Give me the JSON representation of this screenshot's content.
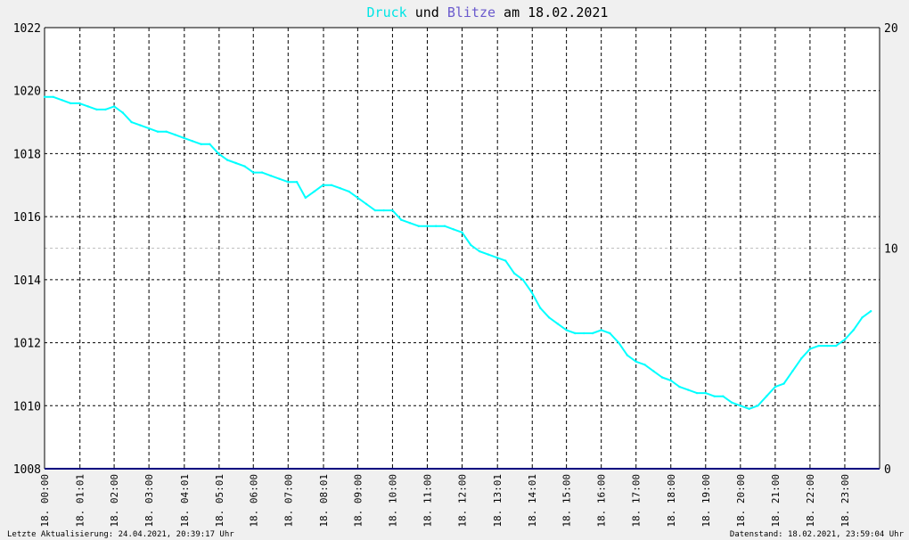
{
  "title": {
    "parts": [
      {
        "text": "Druck",
        "color": "#00e5e5"
      },
      {
        "text": " und ",
        "color": "#000000"
      },
      {
        "text": "Blitze",
        "color": "#6a5acd"
      },
      {
        "text": " am 18.02.2021",
        "color": "#000000"
      }
    ]
  },
  "footer": {
    "left": "Letzte Aktualisierung: 24.04.2021, 20:39:17 Uhr",
    "right": "Datenstand: 18.02.2021, 23:59:04 Uhr"
  },
  "colors": {
    "background": "#f0f0f0",
    "plot_background": "#ffffff",
    "pressure": "#00ffff",
    "lightning": "#000080",
    "grid": "#000000"
  },
  "chart_data": {
    "type": "line",
    "title": "Druck und Blitze am 18.02.2021",
    "grid": true,
    "x_tick_labels": [
      "18. 00:00",
      "18. 01:01",
      "18. 02:00",
      "18. 03:00",
      "18. 04:01",
      "18. 05:01",
      "18. 06:00",
      "18. 07:00",
      "18. 08:01",
      "18. 09:00",
      "18. 10:00",
      "18. 11:00",
      "18. 12:00",
      "18. 13:01",
      "18. 14:01",
      "18. 15:00",
      "18. 16:00",
      "18. 17:00",
      "18. 18:00",
      "18. 19:00",
      "18. 20:00",
      "18. 21:00",
      "18. 22:00",
      "18. 23:00"
    ],
    "x_tick_hours": [
      0,
      1.017,
      2,
      3,
      4.017,
      5.017,
      6,
      7,
      8.017,
      9,
      10,
      11,
      12,
      13.017,
      14.017,
      15,
      16,
      17,
      18,
      19,
      20,
      21,
      22,
      23
    ],
    "xlim": [
      0,
      24
    ],
    "left_axis": {
      "ylim": [
        1008,
        1022
      ],
      "ticks": [
        1008,
        1010,
        1012,
        1014,
        1016,
        1018,
        1020,
        1022
      ]
    },
    "right_axis": {
      "ylim": [
        0,
        20
      ],
      "ticks": [
        0,
        10,
        20
      ]
    },
    "series": [
      {
        "name": "Druck",
        "axis": "left",
        "color": "#00ffff",
        "x": [
          0,
          0.25,
          0.5,
          0.75,
          1.0,
          1.25,
          1.5,
          1.75,
          2.0,
          2.25,
          2.5,
          2.75,
          3.0,
          3.25,
          3.5,
          3.75,
          4.0,
          4.25,
          4.5,
          4.75,
          5.0,
          5.25,
          5.5,
          5.75,
          6.0,
          6.25,
          6.5,
          6.75,
          7.0,
          7.25,
          7.5,
          7.75,
          8.0,
          8.25,
          8.5,
          8.75,
          9.0,
          9.25,
          9.5,
          9.75,
          10.0,
          10.25,
          10.5,
          10.75,
          11.0,
          11.25,
          11.5,
          11.75,
          12.0,
          12.25,
          12.5,
          12.75,
          13.0,
          13.25,
          13.5,
          13.75,
          14.0,
          14.25,
          14.5,
          14.75,
          15.0,
          15.25,
          15.5,
          15.75,
          16.0,
          16.25,
          16.5,
          16.75,
          17.0,
          17.25,
          17.5,
          17.75,
          18.0,
          18.25,
          18.5,
          18.75,
          19.0,
          19.25,
          19.5,
          19.75,
          20.0,
          20.25,
          20.5,
          20.75,
          21.0,
          21.25,
          21.5,
          21.75,
          22.0,
          22.25,
          22.5,
          22.75,
          23.0,
          23.25,
          23.5,
          23.75
        ],
        "values": [
          1019.8,
          1019.8,
          1019.7,
          1019.6,
          1019.6,
          1019.5,
          1019.4,
          1019.4,
          1019.5,
          1019.3,
          1019.0,
          1018.9,
          1018.8,
          1018.7,
          1018.7,
          1018.6,
          1018.5,
          1018.4,
          1018.3,
          1018.3,
          1018.0,
          1017.8,
          1017.7,
          1017.6,
          1017.4,
          1017.4,
          1017.3,
          1017.2,
          1017.1,
          1017.1,
          1016.6,
          1016.8,
          1017.0,
          1017.0,
          1016.9,
          1016.8,
          1016.6,
          1016.4,
          1016.2,
          1016.2,
          1016.2,
          1015.9,
          1015.8,
          1015.7,
          1015.7,
          1015.7,
          1015.7,
          1015.6,
          1015.5,
          1015.1,
          1014.9,
          1014.8,
          1014.7,
          1014.6,
          1014.2,
          1014.0,
          1013.6,
          1013.1,
          1012.8,
          1012.6,
          1012.4,
          1012.3,
          1012.3,
          1012.3,
          1012.4,
          1012.3,
          1012.0,
          1011.6,
          1011.4,
          1011.3,
          1011.1,
          1010.9,
          1010.8,
          1010.6,
          1010.5,
          1010.4,
          1010.4,
          1010.3,
          1010.3,
          1010.1,
          1010.0,
          1009.9,
          1010.0,
          1010.3,
          1010.6,
          1010.7,
          1011.1,
          1011.5,
          1011.8,
          1011.9,
          1011.9,
          1011.9,
          1012.1,
          1012.4,
          1012.8,
          1013.0
        ]
      },
      {
        "name": "Blitze",
        "axis": "right",
        "color": "#000080",
        "x": [
          0,
          24
        ],
        "values": [
          0,
          0
        ]
      }
    ]
  }
}
